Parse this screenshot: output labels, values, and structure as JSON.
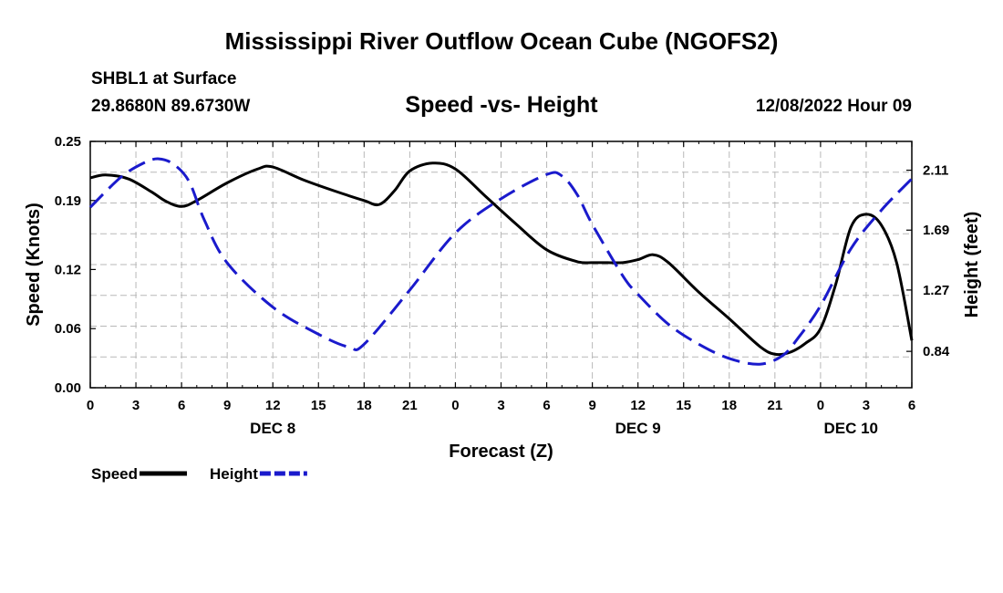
{
  "page": {
    "title_top": "Mississippi River Outflow Ocean Cube (NGOFS2)",
    "title_bottom": "Mississippi River Outflow Ocean Cube (NGOFS2)",
    "station": "SHBL1 at Surface",
    "coords": "29.8680N  89.6730W",
    "subtitle": "Speed -vs- Height",
    "datetime": "12/08/2022 Hour 09"
  },
  "chart_data": {
    "type": "line",
    "xlabel": "Forecast (Z)",
    "ylabel": "Speed (Knots)",
    "y2label": "Height (feet)",
    "xlim": [
      0,
      54
    ],
    "ylim": [
      0,
      0.25
    ],
    "y2lim": [
      0.585,
      2.312
    ],
    "x_tick_labels": [
      "0",
      "3",
      "6",
      "9",
      "12",
      "15",
      "18",
      "21",
      "0",
      "3",
      "6",
      "9",
      "12",
      "15",
      "18",
      "21",
      "0",
      "3",
      "6"
    ],
    "date_labels": [
      {
        "label": "DEC 8",
        "x": 12
      },
      {
        "label": "DEC 9",
        "x": 36
      },
      {
        "label": "DEC 10",
        "x": 50
      }
    ],
    "y_ticks": [
      0,
      0.06,
      0.12,
      0.19,
      0.25
    ],
    "y_tick_labels": [
      "0.00",
      "0.06",
      "0.12",
      "0.19",
      "0.25"
    ],
    "y2_ticks": [
      0.84,
      1.27,
      1.69,
      2.11
    ],
    "y2_tick_labels": [
      "0.84",
      "1.27",
      "1.69",
      "2.11"
    ],
    "grid": true,
    "legend": [
      {
        "name": "Speed",
        "color": "#000000",
        "style": "solid"
      },
      {
        "name": "Height",
        "color": "#1a1acc",
        "style": "dashed"
      }
    ],
    "series": [
      {
        "name": "Speed",
        "axis": "left",
        "color": "#000000",
        "x": [
          0,
          1,
          2.5,
          4,
          5,
          6,
          7,
          9,
          11,
          12,
          14,
          16,
          18,
          19,
          20,
          21,
          22.5,
          24,
          26,
          28,
          30,
          32,
          33,
          34,
          35,
          36,
          37,
          38,
          40,
          42,
          44,
          45,
          46,
          47,
          48,
          49,
          50,
          51,
          52,
          53,
          54
        ],
        "y": [
          0.213,
          0.216,
          0.212,
          0.199,
          0.189,
          0.184,
          0.19,
          0.208,
          0.222,
          0.224,
          0.211,
          0.2,
          0.19,
          0.186,
          0.2,
          0.22,
          0.228,
          0.222,
          0.194,
          0.166,
          0.14,
          0.128,
          0.127,
          0.127,
          0.127,
          0.13,
          0.135,
          0.127,
          0.097,
          0.07,
          0.042,
          0.034,
          0.036,
          0.045,
          0.06,
          0.105,
          0.163,
          0.176,
          0.165,
          0.127,
          0.048
        ]
      },
      {
        "name": "Height",
        "axis": "right",
        "color": "#1a1acc",
        "x": [
          0,
          2,
          3.5,
          4.5,
          5.5,
          6.5,
          7.5,
          9,
          12,
          15,
          17,
          18,
          21,
          24,
          27,
          30,
          31,
          32,
          33,
          35,
          36,
          38,
          40,
          42,
          44,
          45.5,
          46.5,
          48,
          50,
          52,
          54
        ],
        "y": [
          1.85,
          2.06,
          2.16,
          2.19,
          2.15,
          2.03,
          1.76,
          1.46,
          1.15,
          0.96,
          0.87,
          0.89,
          1.27,
          1.67,
          1.91,
          2.08,
          2.07,
          1.94,
          1.73,
          1.37,
          1.24,
          1.03,
          0.89,
          0.79,
          0.75,
          0.81,
          0.93,
          1.16,
          1.56,
          1.83,
          2.05
        ]
      }
    ]
  }
}
